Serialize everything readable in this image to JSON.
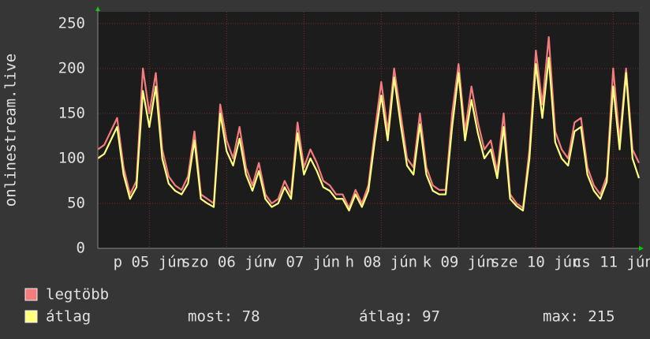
{
  "chart_data": {
    "type": "line",
    "y_label": "onlinestream.live",
    "x": [
      0,
      2,
      4,
      6,
      8,
      10,
      12,
      14,
      16,
      18,
      20,
      22,
      24,
      26,
      28,
      30,
      32,
      34,
      36,
      38,
      40,
      42,
      44,
      46,
      48,
      50,
      52,
      54,
      56,
      58,
      60,
      62,
      64,
      66,
      68,
      70,
      72,
      74,
      76,
      78,
      80,
      82,
      84,
      86,
      88,
      90,
      92,
      94,
      96,
      98,
      100,
      102,
      104,
      106,
      108,
      110,
      112,
      114,
      116,
      118,
      120,
      122,
      124,
      126,
      128,
      130,
      132,
      134,
      136,
      138,
      140,
      142,
      144,
      146,
      148,
      150,
      152,
      154,
      156,
      158,
      160,
      162,
      164,
      166,
      168
    ],
    "xlim": [
      0,
      168
    ],
    "xticks": [
      {
        "value": 16,
        "label": "p 05 jún"
      },
      {
        "value": 40,
        "label": "szo 06 jún"
      },
      {
        "value": 64,
        "label": "v 07 jún"
      },
      {
        "value": 88,
        "label": "h 08 jún"
      },
      {
        "value": 112,
        "label": "k 09 jún"
      },
      {
        "value": 136,
        "label": "sze 10 jún"
      },
      {
        "value": 160,
        "label": "cs 11 jún"
      }
    ],
    "ylim": [
      0,
      263
    ],
    "yticks": [
      0,
      50,
      100,
      150,
      200,
      250
    ],
    "grid": true,
    "series": [
      {
        "name": "legtöbb",
        "color": "#f47c7c",
        "values": [
          110,
          115,
          130,
          145,
          90,
          60,
          75,
          200,
          150,
          195,
          110,
          80,
          70,
          65,
          80,
          130,
          60,
          55,
          50,
          160,
          120,
          100,
          135,
          90,
          70,
          95,
          60,
          50,
          55,
          75,
          60,
          140,
          90,
          110,
          95,
          75,
          70,
          60,
          60,
          45,
          65,
          50,
          70,
          130,
          185,
          130,
          200,
          150,
          100,
          90,
          150,
          90,
          70,
          65,
          65,
          150,
          205,
          130,
          180,
          140,
          110,
          120,
          85,
          150,
          60,
          50,
          45,
          110,
          220,
          160,
          235,
          130,
          110,
          100,
          140,
          145,
          90,
          70,
          60,
          80,
          200,
          120,
          200,
          110,
          95
        ]
      },
      {
        "name": "átlag",
        "color": "#ffff80",
        "values": [
          100,
          105,
          120,
          135,
          82,
          55,
          68,
          175,
          135,
          180,
          100,
          72,
          64,
          60,
          72,
          120,
          55,
          50,
          46,
          150,
          108,
          92,
          122,
          82,
          64,
          86,
          55,
          46,
          50,
          68,
          55,
          128,
          82,
          100,
          86,
          68,
          64,
          55,
          55,
          42,
          60,
          46,
          64,
          120,
          170,
          120,
          190,
          138,
          92,
          82,
          138,
          82,
          64,
          60,
          60,
          135,
          195,
          120,
          165,
          128,
          100,
          110,
          78,
          135,
          55,
          47,
          42,
          100,
          205,
          145,
          212,
          118,
          100,
          92,
          130,
          135,
          82,
          64,
          55,
          74,
          180,
          110,
          195,
          100,
          78
        ]
      }
    ],
    "stats": [
      "most: 78",
      "átlag: 97",
      "max: 215"
    ]
  }
}
